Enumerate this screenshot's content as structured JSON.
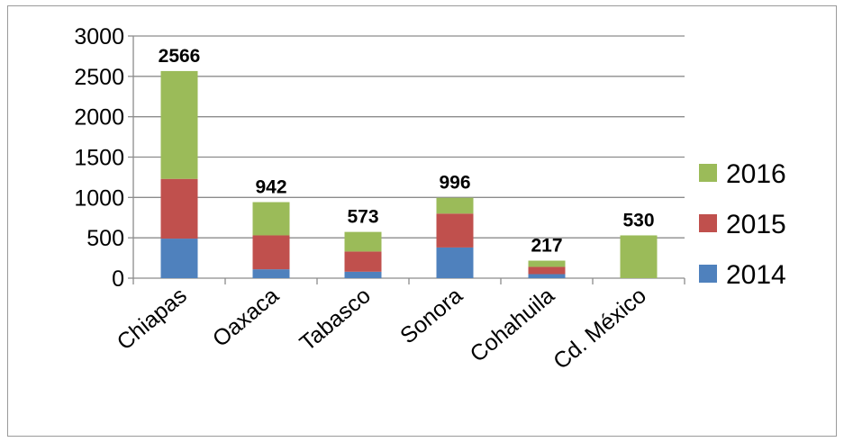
{
  "chart_data": {
    "type": "bar",
    "stacked": true,
    "title": "",
    "xlabel": "",
    "ylabel": "",
    "ylim": [
      0,
      3000
    ],
    "yticks": [
      "0",
      "500",
      "1000",
      "1500",
      "2000",
      "2500",
      "3000"
    ],
    "grid": true,
    "legend_position": "right",
    "categories": [
      "Chiapas",
      "Oaxaca",
      "Tabasco",
      "Sonora",
      "Cohahuila",
      "Cd. México"
    ],
    "totals": [
      "2566",
      "942",
      "573",
      "996",
      "217",
      "530"
    ],
    "series": [
      {
        "name": "2014",
        "color": "#4f81bd",
        "values": [
          490,
          110,
          80,
          380,
          50,
          0
        ]
      },
      {
        "name": "2015",
        "color": "#c0504d",
        "values": [
          740,
          420,
          250,
          420,
          90,
          0
        ]
      },
      {
        "name": "2016",
        "color": "#9bbb59",
        "values": [
          1336,
          412,
          243,
          196,
          77,
          530
        ]
      }
    ]
  }
}
